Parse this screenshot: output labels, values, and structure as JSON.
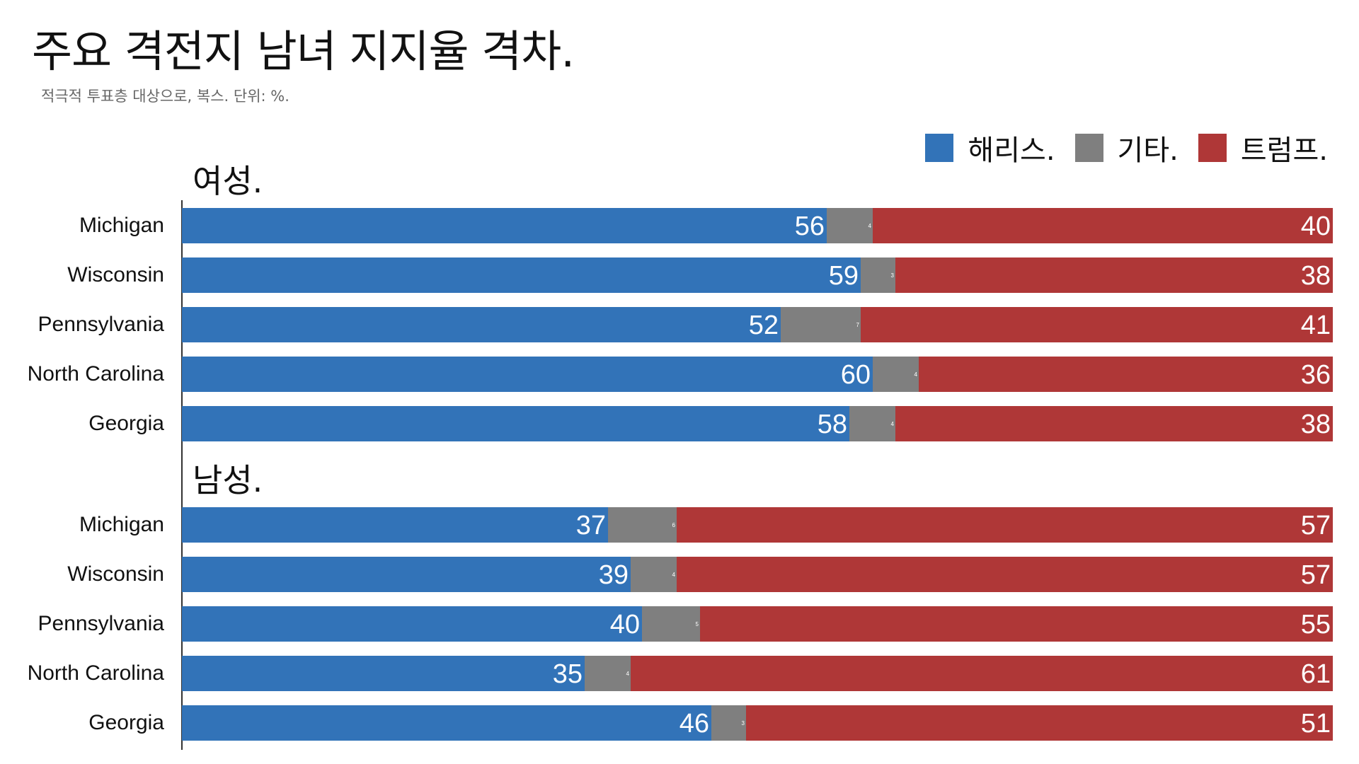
{
  "title": "주요 격전지 남녀 지지율 격차.",
  "subtitle": "적극적 투표층 대상으로, 복스. 단위: %.",
  "colors": {
    "harris": "#3273b8",
    "other": "#7f7f7f",
    "trump": "#af3737"
  },
  "legend": [
    {
      "key": "harris",
      "label": "해리스."
    },
    {
      "key": "other",
      "label": "기타."
    },
    {
      "key": "trump",
      "label": "트럼프."
    }
  ],
  "chart_data": {
    "type": "bar",
    "orientation": "horizontal",
    "stacked": true,
    "title": "주요 격전지 남녀 지지율 격차.",
    "subtitle": "적극적 투표층 대상으로, 복스. 단위: %.",
    "xlim": [
      0,
      100
    ],
    "grid": false,
    "legend_placement": "top-right",
    "series_names": [
      "해리스.",
      "기타.",
      "트럼프."
    ],
    "groups": [
      {
        "name": "여성.",
        "categories": [
          "Michigan",
          "Wisconsin",
          "Pennsylvania",
          "North Carolina",
          "Georgia"
        ],
        "series": [
          {
            "name": "해리스.",
            "values": [
              56,
              59,
              52,
              60,
              58
            ]
          },
          {
            "name": "기타.",
            "values": [
              4,
              3,
              7,
              4,
              4
            ]
          },
          {
            "name": "트럼프.",
            "values": [
              40,
              38,
              41,
              36,
              38
            ]
          }
        ]
      },
      {
        "name": "남성.",
        "categories": [
          "Michigan",
          "Wisconsin",
          "Pennsylvania",
          "North Carolina",
          "Georgia"
        ],
        "series": [
          {
            "name": "해리스.",
            "values": [
              37,
              39,
              40,
              35,
              46
            ]
          },
          {
            "name": "기타.",
            "values": [
              6,
              4,
              5,
              4,
              3
            ]
          },
          {
            "name": "트럼프.",
            "values": [
              57,
              57,
              55,
              61,
              51
            ]
          }
        ]
      }
    ]
  }
}
